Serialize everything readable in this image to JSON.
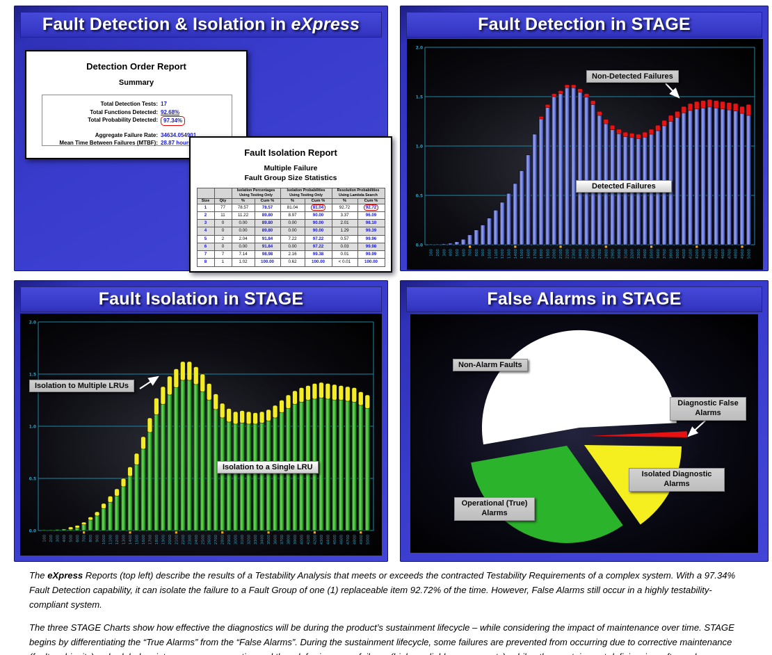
{
  "colors": {
    "panel_blue": "#3a3ccd",
    "grid_teal": "#1d88a6",
    "bar_blue": "#94a2ee",
    "cap_red": "#e51515",
    "bar_green": "#46bf3c",
    "cap_yellow": "#f4ec25",
    "pie_white": "#ffffff",
    "pie_red": "#e81111",
    "pie_yellow": "#f5ef1f",
    "pie_green": "#2cb32c",
    "label_gray": "#c7c7c7"
  },
  "panels": {
    "express": {
      "title_pre": "Fault Detection & Isolation in ",
      "title_italic": "eXpress",
      "doc1": {
        "title": "Detection Order Report",
        "subtitle": "Summary",
        "fields": [
          {
            "label": "Total Detection Tests:",
            "value": "17",
            "style": "plain",
            "gap_before": false
          },
          {
            "label": "Total Functions Detected:",
            "value": "92.68%",
            "style": "underline",
            "gap_before": false
          },
          {
            "label": "Total Probability Detected:",
            "value": "97.34%",
            "style": "redbox",
            "gap_before": false
          },
          {
            "label": "Aggregate Failure Rate:",
            "value": "34634.054901",
            "style": "plain",
            "gap_before": true
          },
          {
            "label": "Mean Time Between Failures (MTBF):",
            "value": "28.87 hours",
            "style": "plain",
            "gap_before": false
          }
        ]
      },
      "doc2": {
        "title": "Fault Isolation Report",
        "subtitle1": "Multiple Failure",
        "subtitle2": "Fault Group Size Statistics",
        "table": {
          "group_headers": [
            {
              "line1": "Isolation Percentages",
              "line2": "Using Testing Only"
            },
            {
              "line1": "Isolation Probabilities",
              "line2": "Using Testing Only"
            },
            {
              "line1": "Resolution Probabilities",
              "line2": "Using Lambda Search"
            }
          ],
          "col_headers": [
            "Size",
            "Qty",
            "%",
            "Cum %",
            "%",
            "Cum %",
            "%",
            "Cum %"
          ],
          "rows": [
            [
              "1",
              "77",
              "78.57",
              "78.57",
              "81.04",
              "81.04",
              "92.72",
              "92.72"
            ],
            [
              "2",
              "11",
              "11.22",
              "89.80",
              "8.97",
              "90.00",
              "3.37",
              "96.09"
            ],
            [
              "3",
              "0",
              "0.00",
              "89.80",
              "0.00",
              "90.00",
              "2.01",
              "98.10"
            ],
            [
              "4",
              "0",
              "0.00",
              "89.80",
              "0.00",
              "90.00",
              "1.29",
              "99.39"
            ],
            [
              "5",
              "2",
              "2.04",
              "91.84",
              "7.22",
              "97.22",
              "0.57",
              "99.96"
            ],
            [
              "6",
              "0",
              "0.00",
              "91.84",
              "0.00",
              "97.22",
              "0.03",
              "99.98"
            ],
            [
              "7",
              "7",
              "7.14",
              "98.98",
              "2.16",
              "99.38",
              "0.01",
              "99.99"
            ],
            [
              "8",
              "1",
              "1.02",
              "100.00",
              "0.62",
              "100.00",
              "< 0.01",
              "100.00"
            ]
          ],
          "shaded_rows": [
            2,
            3,
            5
          ],
          "red_boxes": [
            [
              0,
              5
            ],
            [
              0,
              7
            ]
          ]
        }
      }
    },
    "detection": {
      "title": "Fault Detection in STAGE",
      "label_nondetected": "Non-Detected Failures",
      "label_detected": "Detected Failures"
    },
    "isolation": {
      "title": "Fault Isolation in STAGE",
      "label_multiple": "Isolation to Multiple LRUs",
      "label_single": "Isolation to a Single LRU"
    },
    "false_alarms": {
      "title": "False Alarms in STAGE",
      "label_nonalarm": "Non-Alarm Faults",
      "label_diag_fa": "Diagnostic False Alarms",
      "label_isolated": "Isolated Diagnostic Alarms",
      "label_operational": "Operational (True) Alarms"
    }
  },
  "chart_data": [
    {
      "id": "detection",
      "type": "bar",
      "stacked": true,
      "title": "Fault Detection in STAGE",
      "ylim": [
        0,
        2
      ],
      "yticks": [
        "0.0",
        "0.5",
        "1.0",
        "1.5",
        "2.0"
      ],
      "grid": true,
      "categories": [
        "100",
        "200",
        "300",
        "400",
        "500",
        "600",
        "700",
        "800",
        "900",
        "1000",
        "1100",
        "1200",
        "1300",
        "1400",
        "1500",
        "1600",
        "1700",
        "1800",
        "1900",
        "2000",
        "2100",
        "2200",
        "2300",
        "2400",
        "2500",
        "2600",
        "2700",
        "2800",
        "2900",
        "3000",
        "3100",
        "3200",
        "3300",
        "3400",
        "3500",
        "3600",
        "3700",
        "3800",
        "3900",
        "4000",
        "4100",
        "4200",
        "4300",
        "4400",
        "4500",
        "4600",
        "4700",
        "4800",
        "4900",
        "5000"
      ],
      "series": [
        {
          "name": "Detected Failures",
          "colorKey": "blue",
          "values": [
            0.005,
            0.005,
            0.01,
            0.015,
            0.03,
            0.055,
            0.1,
            0.15,
            0.2,
            0.27,
            0.35,
            0.43,
            0.52,
            0.62,
            0.75,
            0.91,
            1.12,
            1.285,
            1.4,
            1.51,
            1.54,
            1.6,
            1.6,
            1.555,
            1.505,
            1.43,
            1.32,
            1.235,
            1.175,
            1.135,
            1.105,
            1.095,
            1.085,
            1.1,
            1.13,
            1.165,
            1.215,
            1.26,
            1.3,
            1.345,
            1.37,
            1.385,
            1.395,
            1.405,
            1.395,
            1.385,
            1.375,
            1.365,
            1.34,
            1.32
          ]
        },
        {
          "name": "Non-Detected Failures",
          "colorKey": "red",
          "values": [
            0,
            0,
            0,
            0,
            0,
            0,
            0,
            0,
            0,
            0,
            0,
            0,
            0,
            0,
            0,
            0,
            0,
            0.015,
            0.02,
            0.02,
            0.02,
            0.02,
            0.02,
            0.025,
            0.025,
            0.03,
            0.03,
            0.035,
            0.035,
            0.035,
            0.035,
            0.035,
            0.035,
            0.04,
            0.04,
            0.045,
            0.045,
            0.05,
            0.05,
            0.055,
            0.06,
            0.065,
            0.065,
            0.065,
            0.065,
            0.065,
            0.065,
            0.065,
            0.06,
            0.1
          ]
        }
      ]
    },
    {
      "id": "isolation",
      "type": "bar",
      "stacked": true,
      "title": "Fault Isolation in STAGE",
      "ylim": [
        0,
        2
      ],
      "yticks": [
        "0.0",
        "0.5",
        "1.0",
        "1.5",
        "2.0"
      ],
      "grid": true,
      "categories": [
        "100",
        "200",
        "300",
        "400",
        "500",
        "600",
        "700",
        "800",
        "900",
        "1000",
        "1100",
        "1200",
        "1300",
        "1400",
        "1500",
        "1600",
        "1700",
        "1800",
        "1900",
        "2000",
        "2100",
        "2200",
        "2300",
        "2400",
        "2500",
        "2600",
        "2700",
        "2800",
        "2900",
        "3000",
        "3100",
        "3200",
        "3300",
        "3400",
        "3500",
        "3600",
        "3700",
        "3800",
        "3900",
        "4000",
        "4100",
        "4200",
        "4300",
        "4400",
        "4500",
        "4600",
        "4700",
        "4800",
        "4900",
        "5000"
      ],
      "series": [
        {
          "name": "Isolation to a Single LRU",
          "colorKey": "green",
          "values": [
            0.005,
            0.005,
            0.01,
            0.015,
            0.02,
            0.035,
            0.065,
            0.11,
            0.15,
            0.22,
            0.28,
            0.34,
            0.43,
            0.53,
            0.64,
            0.79,
            0.95,
            1.12,
            1.22,
            1.31,
            1.38,
            1.45,
            1.45,
            1.41,
            1.34,
            1.26,
            1.17,
            1.09,
            1.05,
            1.03,
            1.04,
            1.03,
            1.03,
            1.04,
            1.06,
            1.09,
            1.14,
            1.18,
            1.22,
            1.24,
            1.26,
            1.27,
            1.28,
            1.27,
            1.26,
            1.26,
            1.25,
            1.24,
            1.21,
            1.18
          ]
        },
        {
          "name": "Isolation to Multiple LRUs",
          "colorKey": "yellow",
          "values": [
            0,
            0,
            0,
            0,
            0.005,
            0.01,
            0.015,
            0.02,
            0.03,
            0.04,
            0.05,
            0.06,
            0.07,
            0.08,
            0.1,
            0.11,
            0.13,
            0.15,
            0.16,
            0.17,
            0.17,
            0.17,
            0.17,
            0.16,
            0.16,
            0.15,
            0.14,
            0.13,
            0.12,
            0.11,
            0.11,
            0.11,
            0.1,
            0.1,
            0.1,
            0.11,
            0.11,
            0.12,
            0.12,
            0.13,
            0.13,
            0.14,
            0.14,
            0.14,
            0.14,
            0.13,
            0.13,
            0.13,
            0.12,
            0.12
          ]
        }
      ]
    },
    {
      "id": "false_alarms",
      "type": "pie",
      "title": "False Alarms in STAGE",
      "slices": [
        {
          "label": "Non-Alarm Faults",
          "pct": 52,
          "color": "#ffffff"
        },
        {
          "label": "Diagnostic False Alarms",
          "pct": 1,
          "color": "#e81111"
        },
        {
          "label": "Isolated Diagnostic Alarms",
          "pct": 15,
          "color": "#f5ef1f"
        },
        {
          "label": "Operational (True) Alarms",
          "pct": 32,
          "color": "#2cb32c"
        }
      ]
    }
  ],
  "caption": {
    "p1": [
      {
        "text": "The ",
        "bold": false
      },
      {
        "text": "eXpress",
        "bold": true
      },
      {
        "text": " Reports (top left) describe the results of a Testability Analysis that meets or exceeds the contracted Testability Requirements of a complex system. With a 97.34% Fault Detection capability, it can isolate the failure to a Fault Group of one (1) replaceable item 92.72% of the time. However, False Alarms still occur in a highly testability-compliant system.",
        "bold": false
      }
    ],
    "p2": [
      {
        "text": "The three STAGE Charts show how effective the diagnostics will be during the product’s sustainment lifecycle – while considering the impact of maintenance over time. STAGE begins by differentiating the “True Alarms” from the “False Alarms”. During the sustainment lifecycle, some failures are prevented from occurring due to corrective maintenance (fault ambiguity), scheduled maintenance or prognostics and thus deferring some failures (higher reliable components), while other sustainment deficiencies, often unknown during design development, become vividly exposed in the STAGE support simulation.",
        "bold": false
      }
    ]
  }
}
